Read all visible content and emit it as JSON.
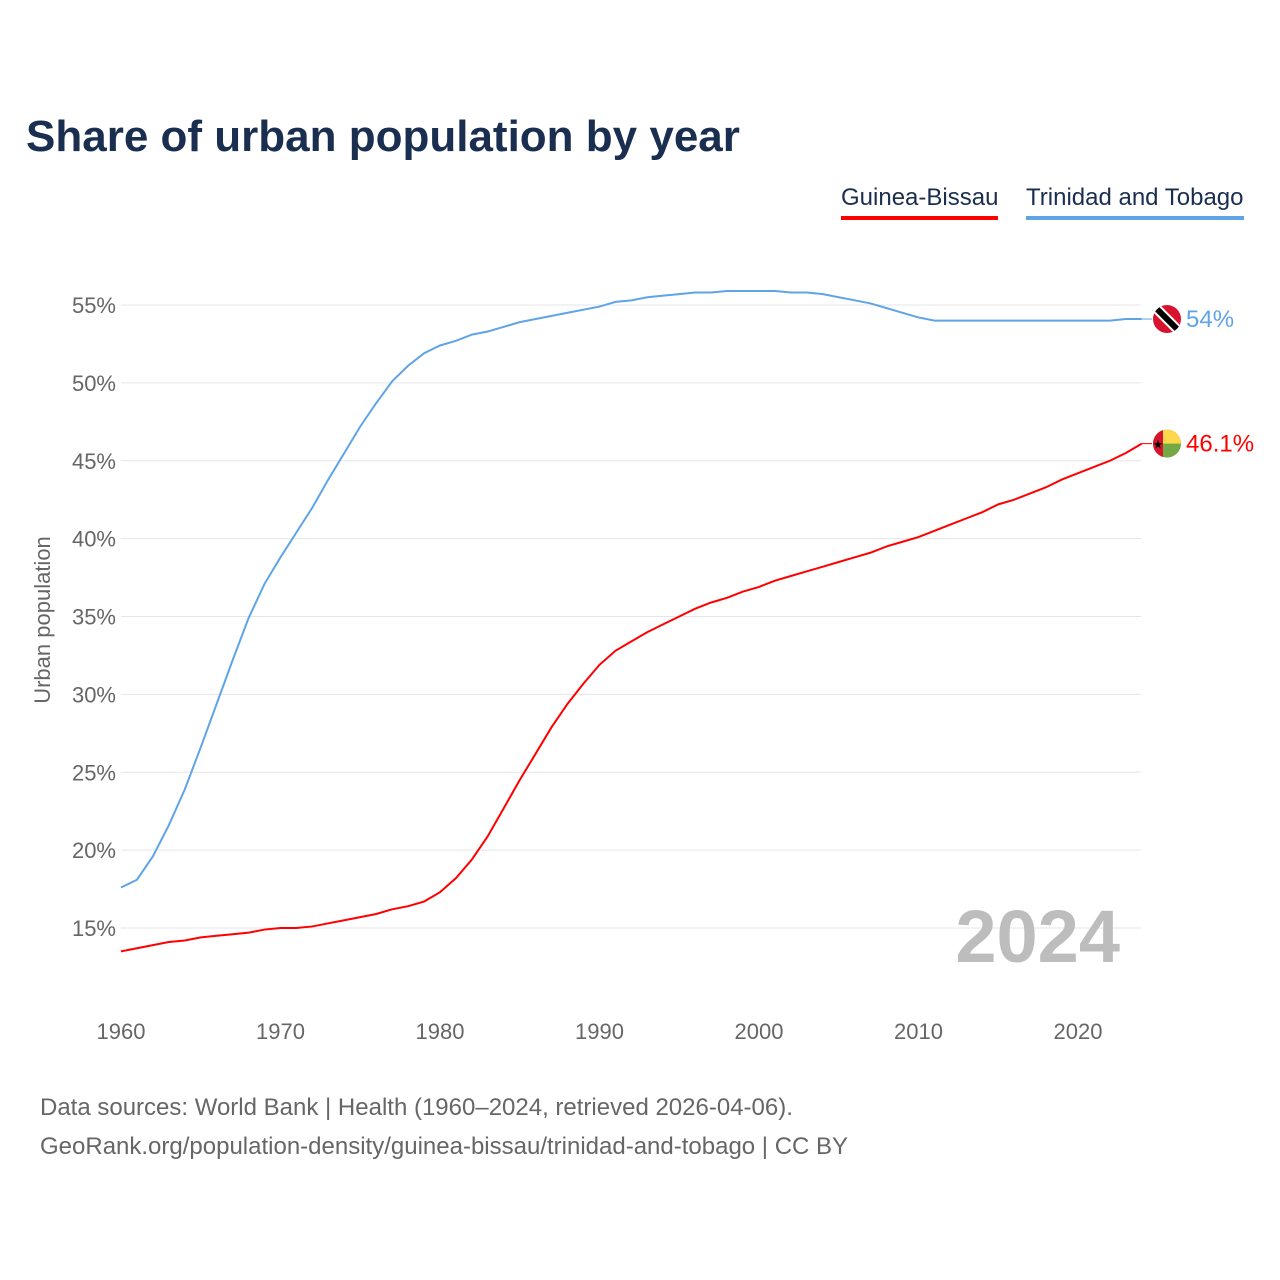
{
  "chart_data": {
    "type": "line",
    "title": "Share of urban population by year",
    "xlabel": "",
    "ylabel": "Urban population",
    "xlim": [
      1960,
      2024
    ],
    "ylim": [
      10.5,
      57
    ],
    "yticks": [
      15,
      20,
      25,
      30,
      35,
      40,
      45,
      50,
      55
    ],
    "ytick_labels": [
      "15%",
      "20%",
      "25%",
      "30%",
      "35%",
      "40%",
      "45%",
      "50%",
      "55%"
    ],
    "xticks": [
      1960,
      1970,
      1980,
      1990,
      2000,
      2010,
      2020
    ],
    "xtick_labels": [
      "1960",
      "1970",
      "1980",
      "1990",
      "2000",
      "2010",
      "2020"
    ],
    "grid": true,
    "legend_position": "top-right",
    "year_watermark": "2024",
    "series": [
      {
        "name": "Guinea-Bissau",
        "color": "#ff0000",
        "end_label": "46.1%",
        "values": [
          13.5,
          13.7,
          13.9,
          14.1,
          14.2,
          14.4,
          14.5,
          14.6,
          14.7,
          14.9,
          15.0,
          15.0,
          15.1,
          15.3,
          15.5,
          15.7,
          15.9,
          16.2,
          16.4,
          16.7,
          17.3,
          18.2,
          19.4,
          20.9,
          22.7,
          24.5,
          26.2,
          27.9,
          29.4,
          30.7,
          31.9,
          32.8,
          33.4,
          34.0,
          34.5,
          35.0,
          35.5,
          35.9,
          36.2,
          36.6,
          36.9,
          37.3,
          37.6,
          37.9,
          38.2,
          38.5,
          38.8,
          39.1,
          39.5,
          39.8,
          40.1,
          40.5,
          40.9,
          41.3,
          41.7,
          42.2,
          42.5,
          42.9,
          43.3,
          43.8,
          44.2,
          44.6,
          45.0,
          45.5,
          46.1
        ]
      },
      {
        "name": "Trinidad and Tobago",
        "color": "#5fa4e8",
        "end_label": "54%",
        "values": [
          17.6,
          18.1,
          19.6,
          21.6,
          23.9,
          26.6,
          29.4,
          32.2,
          34.9,
          37.1,
          38.8,
          40.4,
          42.0,
          43.8,
          45.5,
          47.2,
          48.7,
          50.1,
          51.1,
          51.9,
          52.4,
          52.7,
          53.1,
          53.3,
          53.6,
          53.9,
          54.1,
          54.3,
          54.5,
          54.7,
          54.9,
          55.2,
          55.3,
          55.5,
          55.6,
          55.7,
          55.8,
          55.8,
          55.9,
          55.9,
          55.9,
          55.9,
          55.8,
          55.8,
          55.7,
          55.5,
          55.3,
          55.1,
          54.8,
          54.5,
          54.2,
          54.0,
          54.0,
          54.0,
          54.0,
          54.0,
          54.0,
          54.0,
          54.0,
          54.0,
          54.0,
          54.0,
          54.0,
          54.1,
          54.1
        ]
      }
    ]
  },
  "footer": {
    "line1": "Data sources: World Bank | Health (1960–2024, retrieved 2026-04-06).",
    "line2": "GeoRank.org/population-density/guinea-bissau/trinidad-and-tobago | CC BY"
  }
}
